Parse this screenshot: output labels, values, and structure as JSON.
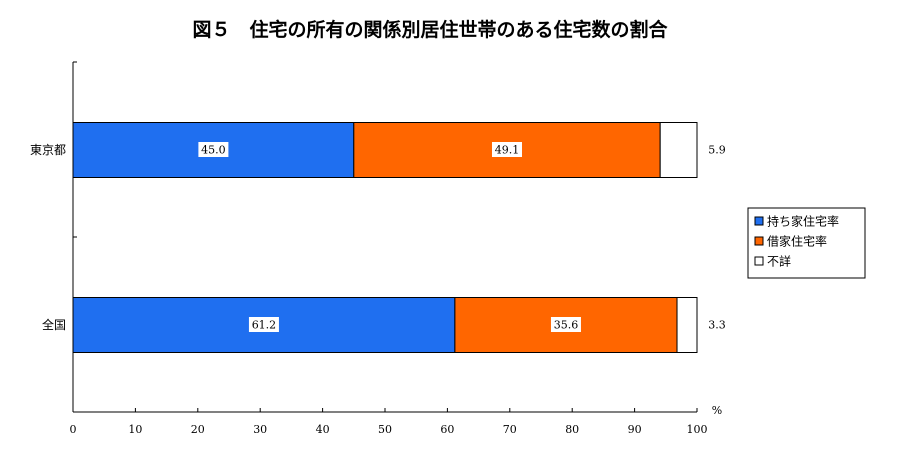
{
  "chart_data": {
    "type": "bar",
    "orientation": "horizontal",
    "stacked": true,
    "title": "図５　住宅の所有の関係別居住世帯のある住宅数の割合",
    "categories": [
      "東京都",
      "全国"
    ],
    "series": [
      {
        "name": "持ち家住宅率",
        "values": [
          45.0,
          61.2
        ],
        "labels": [
          "45.0",
          "61.2"
        ],
        "color": "#1f6ff0"
      },
      {
        "name": "借家住宅率",
        "values": [
          49.1,
          35.6
        ],
        "labels": [
          "49.1",
          "35.6"
        ],
        "color": "#ff6600"
      },
      {
        "name": "不詳",
        "values": [
          5.9,
          3.3
        ],
        "labels": [
          "5.9",
          "3.3"
        ],
        "color": "#ffffff"
      }
    ],
    "xlim": [
      0,
      100
    ],
    "xticks": [
      "0",
      "10",
      "20",
      "30",
      "40",
      "50",
      "60",
      "70",
      "80",
      "90",
      "100"
    ],
    "unit": "%",
    "legend_position": "right",
    "grid": false
  }
}
